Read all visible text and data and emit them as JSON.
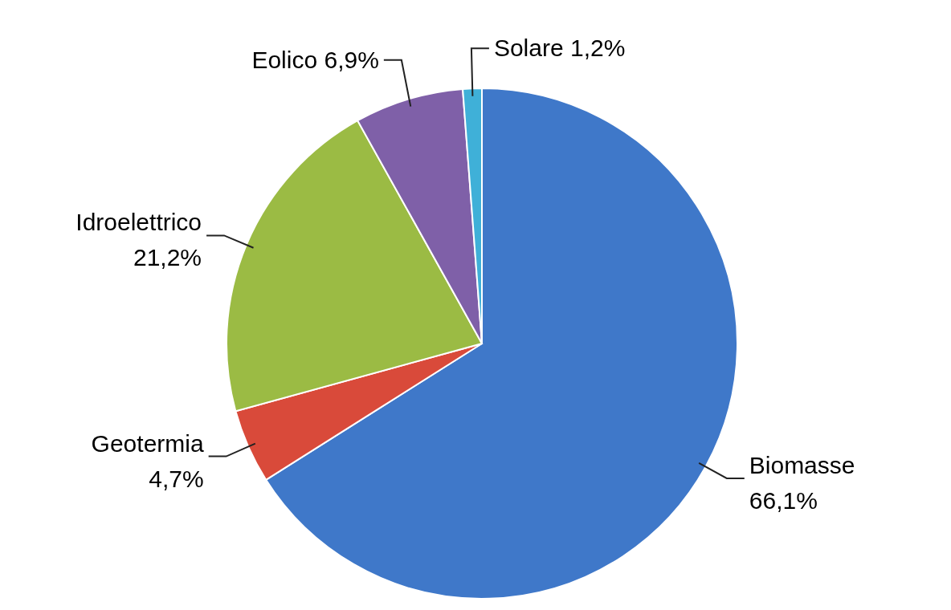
{
  "chart_data": {
    "type": "pie",
    "categories": [
      "Biomasse",
      "Geotermia",
      "Idroelettrico",
      "Eolico",
      "Solare"
    ],
    "values": [
      66.1,
      4.7,
      21.2,
      6.9,
      1.2
    ],
    "value_labels": [
      "66,1%",
      "4,7%",
      "21,2%",
      "6,9%",
      "1,2%"
    ],
    "colors": [
      "#3f78c9",
      "#d94a3a",
      "#9bbb44",
      "#7f60a8",
      "#3fb0d8"
    ]
  }
}
